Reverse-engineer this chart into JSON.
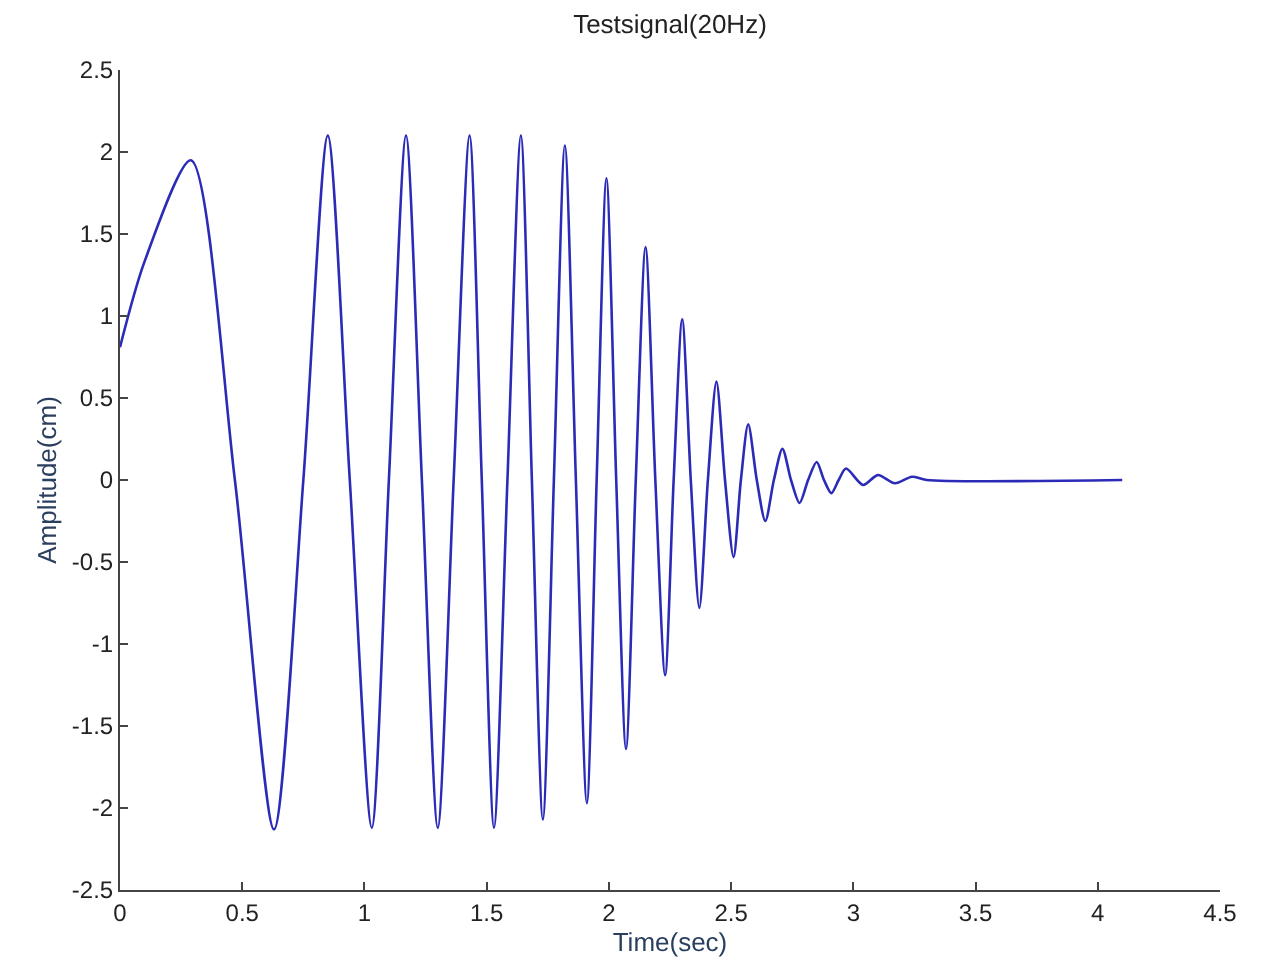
{
  "chart_data": {
    "type": "line",
    "title": "Testsignal(20Hz)",
    "xlabel": "Time(sec)",
    "ylabel": "Amplitude(cm)",
    "x": [
      0,
      0.1,
      0.29,
      0.47,
      0.63,
      0.75,
      0.85,
      0.94,
      1.03,
      1.1,
      1.17,
      1.235,
      1.3,
      1.365,
      1.43,
      1.48,
      1.53,
      1.585,
      1.64,
      1.685,
      1.73,
      1.775,
      1.82,
      1.865,
      1.91,
      1.95,
      1.99,
      2.03,
      2.07,
      2.11,
      2.15,
      2.19,
      2.23,
      2.265,
      2.3,
      2.335,
      2.37,
      2.405,
      2.44,
      2.475,
      2.51,
      2.54,
      2.57,
      2.605,
      2.64,
      2.675,
      2.71,
      2.745,
      2.78,
      2.815,
      2.85,
      2.88,
      2.91,
      2.94,
      2.97,
      3.04,
      3.1,
      3.17,
      3.24,
      3.3,
      4.1
    ],
    "series": [
      {
        "color": "#2b2bb8",
        "values": [
          0.81,
          1.33,
          1.95,
          0,
          -2.13,
          0,
          2.1,
          0,
          -2.12,
          0,
          2.1,
          0,
          -2.12,
          0,
          2.1,
          0,
          -2.12,
          0,
          2.1,
          0,
          -2.07,
          0,
          2.04,
          0,
          -1.97,
          0,
          1.84,
          0,
          -1.64,
          0,
          1.42,
          0,
          -1.19,
          0,
          0.98,
          0,
          -0.78,
          0,
          0.6,
          0,
          -0.47,
          0,
          0.34,
          0,
          -0.25,
          0,
          0.19,
          0,
          -0.14,
          0,
          0.11,
          0,
          -0.08,
          0,
          0.07,
          -0.03,
          0.03,
          -0.02,
          0.02,
          0,
          0
        ]
      }
    ],
    "xlim": [
      0,
      4.5
    ],
    "xticks": [
      0,
      0.5,
      1,
      1.5,
      2,
      2.5,
      3,
      3.5,
      4,
      4.5
    ],
    "ylim": [
      -2.5,
      2.5
    ],
    "yticks": [
      -2.5,
      -2,
      -1.5,
      -1,
      -0.5,
      0,
      0.5,
      1,
      1.5,
      2,
      2.5
    ],
    "marker": "none",
    "line_style": "solid"
  }
}
